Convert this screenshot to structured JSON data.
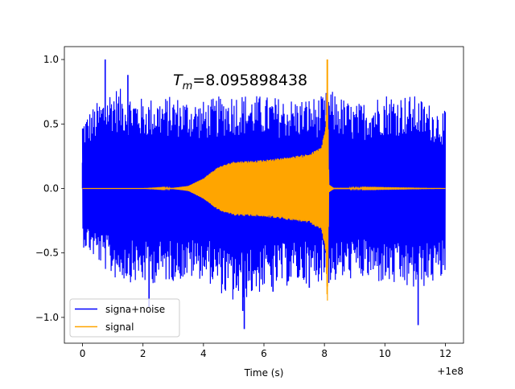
{
  "chart_data": {
    "type": "line",
    "annotation": {
      "prefix": "T",
      "subscript": "m",
      "text": "=8.095898438"
    },
    "xlabel": "Time (s)",
    "ylabel": "",
    "x_offset_label": "+1e8",
    "xlim": [
      -0.6,
      12.6
    ],
    "ylim": [
      -1.2,
      1.1
    ],
    "x_ticks": [
      0,
      2,
      4,
      6,
      8,
      10,
      12
    ],
    "x_tick_labels": [
      "0",
      "2",
      "4",
      "6",
      "8",
      "10",
      "12"
    ],
    "y_ticks": [
      -1.0,
      -0.5,
      0.0,
      0.5,
      1.0
    ],
    "y_tick_labels": [
      "−1.0",
      "−0.5",
      "0.0",
      "0.5",
      "1.0"
    ],
    "grid": false,
    "legend_position": "lower-left",
    "merger_time": 8.095898438,
    "series": [
      {
        "name": "signa+noise",
        "color": "#0000ff",
        "description_points": [
          [
            0,
            0.2
          ],
          [
            0.5,
            0.6
          ],
          [
            0.75,
            1.0
          ],
          [
            1.5,
            0.88
          ],
          [
            2.2,
            -0.92
          ],
          [
            5.3,
            -0.95
          ],
          [
            5.35,
            -1.09
          ],
          [
            6.3,
            -0.8
          ],
          [
            7.5,
            -0.77
          ],
          [
            11.1,
            -1.06
          ]
        ],
        "envelope": {
          "x": [
            0,
            1,
            2,
            3,
            4,
            5,
            6,
            7,
            8,
            8.1,
            9,
            10,
            11,
            12
          ],
          "max": [
            0.55,
            0.8,
            0.7,
            0.72,
            0.68,
            0.75,
            0.72,
            0.7,
            0.72,
            0.78,
            0.65,
            0.75,
            0.72,
            0.6
          ],
          "min": [
            -0.45,
            -0.7,
            -0.75,
            -0.72,
            -0.7,
            -0.9,
            -0.8,
            -0.75,
            -0.72,
            -0.75,
            -0.7,
            -0.75,
            -0.8,
            -0.7
          ]
        }
      },
      {
        "name": "signal",
        "color": "#ffa500",
        "envelope": {
          "x": [
            0,
            2,
            3,
            3.5,
            4,
            4.5,
            5,
            6,
            7,
            7.5,
            7.9,
            8.05,
            8.095898438,
            8.15,
            8.3,
            12
          ],
          "max": [
            0.0,
            0.0,
            0.005,
            0.02,
            0.08,
            0.17,
            0.21,
            0.22,
            0.25,
            0.27,
            0.32,
            0.5,
            1.0,
            0.03,
            0.005,
            0.0
          ]
        }
      }
    ]
  }
}
